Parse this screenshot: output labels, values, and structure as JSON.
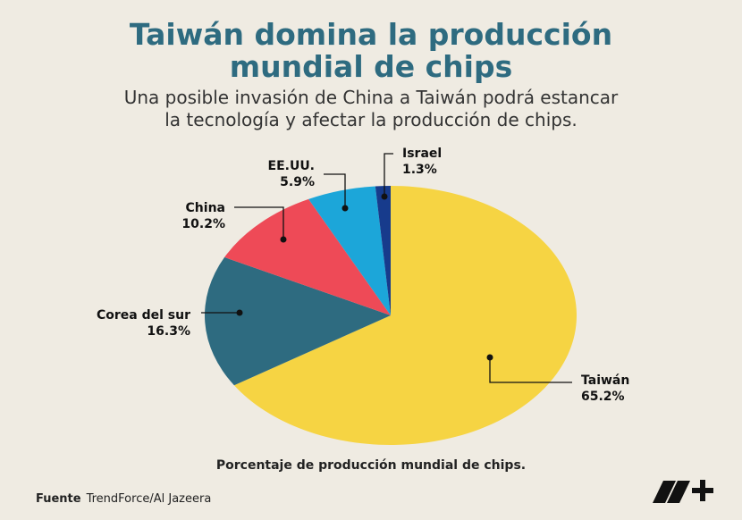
{
  "chart_data": {
    "type": "pie",
    "title": "Taiwán domina la producción mundial de chips",
    "subtitle": "Una posible invasión de China a Taiwán podrá estancar la tecnología y afectar la producción de chips.",
    "caption": "Porcentaje de producción mundial de chips.",
    "source_label": "Fuente",
    "source": "TrendForce/Al Jazeera",
    "categories": [
      "Taiwán",
      "Corea del sur",
      "China",
      "EE.UU.",
      "Israel"
    ],
    "values": [
      65.2,
      16.3,
      10.2,
      5.9,
      1.3
    ],
    "value_labels": [
      "65.2%",
      "16.3%",
      "10.2%",
      "5.9%",
      "1.3%"
    ],
    "colors": [
      "#f6d443",
      "#2e6b80",
      "#ee4a57",
      "#1ca6d9",
      "#173b8c"
    ]
  }
}
